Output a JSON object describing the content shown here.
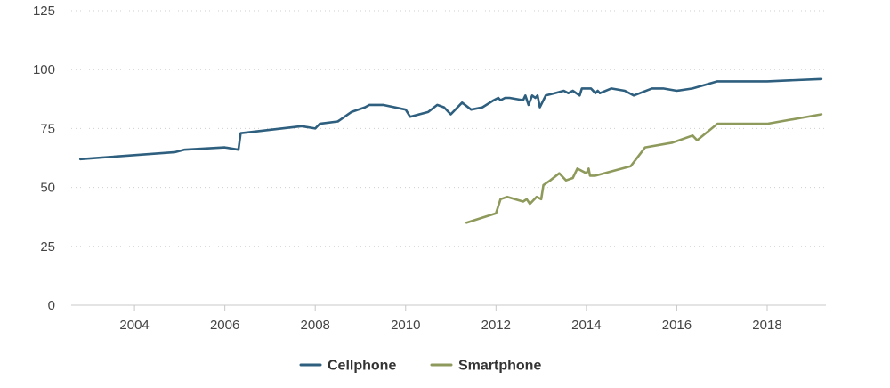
{
  "chart_data": {
    "type": "line",
    "title": "",
    "xlabel": "",
    "ylabel": "",
    "xlim": [
      2002.6,
      2019.3
    ],
    "ylim": [
      0,
      125
    ],
    "yticks": [
      0,
      25,
      50,
      75,
      100,
      125
    ],
    "xticks": [
      2004,
      2006,
      2008,
      2010,
      2012,
      2014,
      2016,
      2018
    ],
    "grid": "horizontal dotted",
    "legend": "bottom-center",
    "series": [
      {
        "name": "Cellphone",
        "color": "#2e5f7f",
        "points": [
          [
            2002.8,
            62
          ],
          [
            2004.9,
            65
          ],
          [
            2005.1,
            66
          ],
          [
            2006.0,
            67
          ],
          [
            2006.3,
            66
          ],
          [
            2006.35,
            73
          ],
          [
            2007.7,
            76
          ],
          [
            2008.0,
            75
          ],
          [
            2008.1,
            77
          ],
          [
            2008.5,
            78
          ],
          [
            2008.8,
            82
          ],
          [
            2009.1,
            84
          ],
          [
            2009.2,
            85
          ],
          [
            2009.5,
            85
          ],
          [
            2010.0,
            83
          ],
          [
            2010.1,
            80
          ],
          [
            2010.5,
            82
          ],
          [
            2010.7,
            85
          ],
          [
            2010.85,
            84
          ],
          [
            2011.0,
            81
          ],
          [
            2011.25,
            86
          ],
          [
            2011.45,
            83
          ],
          [
            2011.7,
            84
          ],
          [
            2011.95,
            87
          ],
          [
            2012.05,
            88
          ],
          [
            2012.1,
            87
          ],
          [
            2012.2,
            88
          ],
          [
            2012.3,
            88
          ],
          [
            2012.6,
            87
          ],
          [
            2012.65,
            89
          ],
          [
            2012.72,
            85
          ],
          [
            2012.8,
            89
          ],
          [
            2012.87,
            88
          ],
          [
            2012.92,
            89
          ],
          [
            2012.97,
            84
          ],
          [
            2013.1,
            89
          ],
          [
            2013.3,
            90
          ],
          [
            2013.5,
            91
          ],
          [
            2013.6,
            90
          ],
          [
            2013.7,
            91
          ],
          [
            2013.85,
            89
          ],
          [
            2013.9,
            92
          ],
          [
            2014.1,
            92
          ],
          [
            2014.2,
            90
          ],
          [
            2014.25,
            91
          ],
          [
            2014.3,
            90
          ],
          [
            2014.55,
            92
          ],
          [
            2014.85,
            91
          ],
          [
            2015.05,
            89
          ],
          [
            2015.45,
            92
          ],
          [
            2015.7,
            92
          ],
          [
            2016.0,
            91
          ],
          [
            2016.35,
            92
          ],
          [
            2016.9,
            95
          ],
          [
            2018.0,
            95
          ],
          [
            2019.2,
            96
          ]
        ]
      },
      {
        "name": "Smartphone",
        "color": "#8e9a5b",
        "points": [
          [
            2011.35,
            35
          ],
          [
            2012.0,
            39
          ],
          [
            2012.1,
            45
          ],
          [
            2012.25,
            46
          ],
          [
            2012.6,
            44
          ],
          [
            2012.68,
            45
          ],
          [
            2012.75,
            43
          ],
          [
            2012.9,
            46
          ],
          [
            2013.0,
            45
          ],
          [
            2013.05,
            51
          ],
          [
            2013.2,
            53
          ],
          [
            2013.4,
            56
          ],
          [
            2013.55,
            53
          ],
          [
            2013.7,
            54
          ],
          [
            2013.8,
            58
          ],
          [
            2014.0,
            56
          ],
          [
            2014.05,
            58
          ],
          [
            2014.08,
            55
          ],
          [
            2014.2,
            55
          ],
          [
            2014.98,
            59
          ],
          [
            2015.3,
            67
          ],
          [
            2015.9,
            69
          ],
          [
            2016.35,
            72
          ],
          [
            2016.45,
            70
          ],
          [
            2016.9,
            77
          ],
          [
            2018.0,
            77
          ],
          [
            2019.2,
            81
          ]
        ]
      }
    ]
  },
  "legend": {
    "items": [
      {
        "label": "Cellphone",
        "color": "#2e5f7f"
      },
      {
        "label": "Smartphone",
        "color": "#8e9a5b"
      }
    ]
  }
}
